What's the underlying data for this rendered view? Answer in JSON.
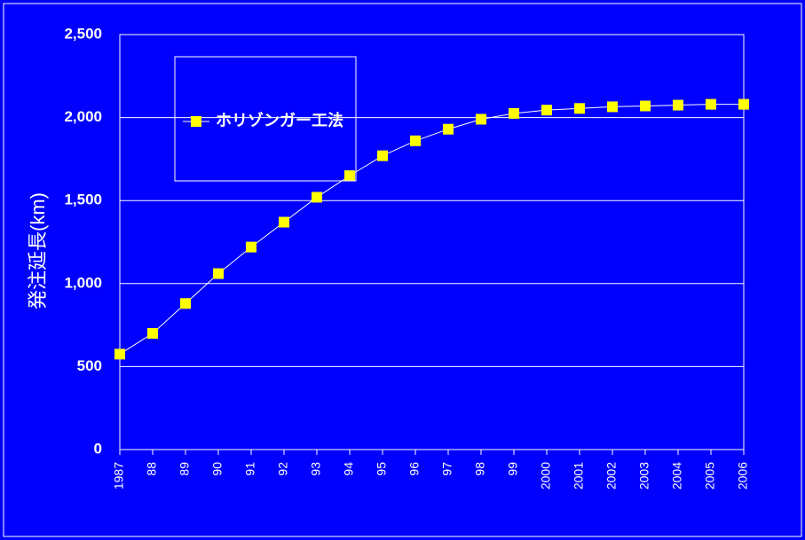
{
  "chart_data": {
    "type": "line",
    "y_label": "発注延長(km)",
    "categories": [
      "1987",
      "88",
      "89",
      "90",
      "91",
      "92",
      "93",
      "94",
      "95",
      "96",
      "97",
      "98",
      "99",
      "2000",
      "2001",
      "2002",
      "2003",
      "2004",
      "2005",
      "2006"
    ],
    "series": [
      {
        "name": "ホリゾンガー工法",
        "color": "#ffff00",
        "values": [
          575,
          700,
          880,
          1060,
          1220,
          1370,
          1520,
          1650,
          1770,
          1860,
          1930,
          1990,
          2025,
          2045,
          2055,
          2065,
          2070,
          2075,
          2080,
          2080
        ]
      }
    ],
    "ylim": [
      0,
      2500
    ],
    "yticks": [
      0,
      500,
      {
        "value": 1000,
        "label": "1,000"
      },
      {
        "value": 1500,
        "label": "1,500"
      },
      {
        "value": 2000,
        "label": "2,000"
      },
      {
        "value": 2500,
        "label": "2,500"
      }
    ],
    "grid": true
  }
}
